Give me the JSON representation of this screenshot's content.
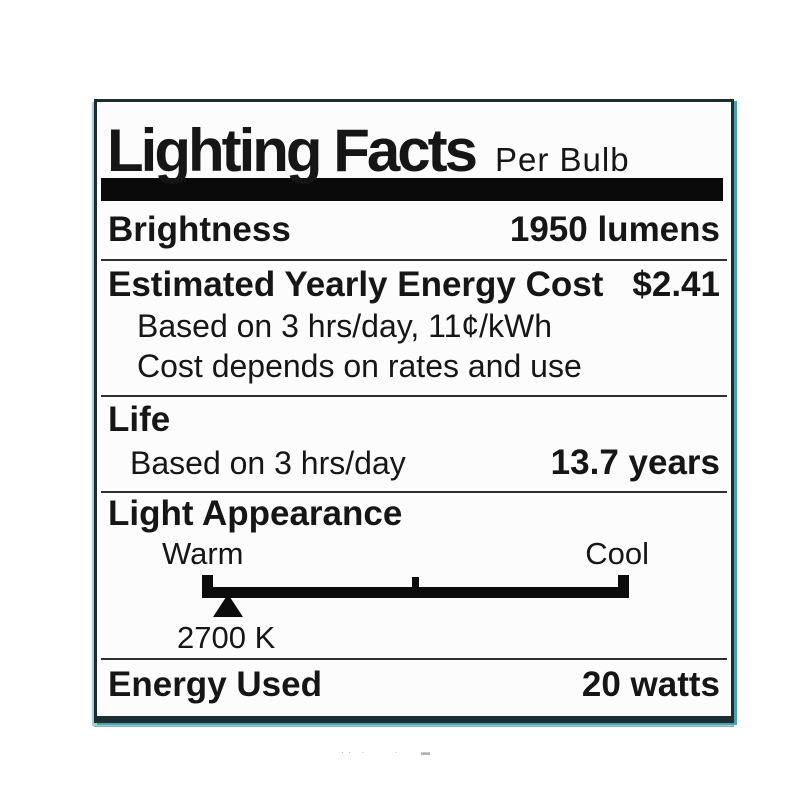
{
  "label": {
    "colors": {
      "ink": "#161616",
      "divider_bar": "#0a0a0a",
      "border": "#1c2e30",
      "teal_edge": "#48a2b2",
      "label_background": "#fcfcfc",
      "page_background": "#ffffff",
      "separator": "#2f2f2f"
    },
    "header": {
      "title": "Lighting Facts",
      "subtitle": "Per Bulb"
    },
    "brightness": {
      "label": "Brightness",
      "value": "1950 lumens"
    },
    "energy_cost": {
      "label": "Estimated Yearly Energy Cost",
      "value": "$2.41",
      "basis": "Based on 3 hrs/day, 11¢/kWh",
      "disclaimer": "Cost depends on rates and use"
    },
    "life": {
      "label": "Life",
      "basis": "Based on 3 hrs/day",
      "value": "13.7 years"
    },
    "light_appearance": {
      "label": "Light Appearance",
      "warm_label": "Warm",
      "cool_label": "Cool",
      "kelvin_value": "2700 K",
      "marker_position_pct": 6
    },
    "energy_used": {
      "label": "Energy Used",
      "value": "20 watts"
    }
  },
  "footer_artifact": {
    "marks": "·· ·    ·   ▬"
  }
}
